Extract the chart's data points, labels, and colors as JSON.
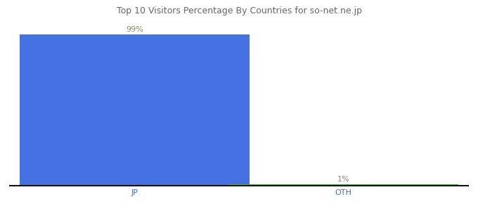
{
  "categories": [
    "JP",
    "OTH"
  ],
  "values": [
    99,
    1
  ],
  "bar_colors": [
    "#4472e4",
    "#22cc22"
  ],
  "labels": [
    "99%",
    "1%"
  ],
  "title": "Top 10 Visitors Percentage By Countries for so-net.ne.jp",
  "title_fontsize": 9,
  "label_fontsize": 8,
  "tick_fontsize": 8,
  "label_color": "#888866",
  "tick_color": "#4466cc",
  "background_color": "#ffffff",
  "ylim": [
    0,
    105
  ],
  "bar_width": 0.55,
  "x_positions": [
    0.25,
    0.75
  ]
}
